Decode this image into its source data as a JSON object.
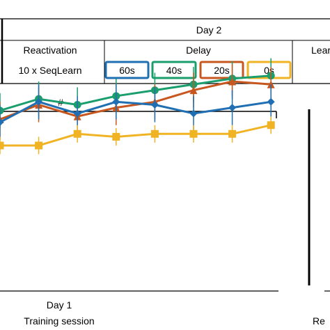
{
  "table": {
    "day_label": "Day 2",
    "col1_header": "Reactivation",
    "col1_value": "10 x SeqLearn",
    "col2_header": "Delay",
    "col3_header_partial": "Lear",
    "delays": [
      {
        "label": "60s",
        "color": "#1f6fb2"
      },
      {
        "label": "40s",
        "color": "#1a9e6e"
      },
      {
        "label": "20s",
        "color": "#c7571f"
      },
      {
        "label": "0s",
        "color": "#f0b323"
      }
    ]
  },
  "chart_data": {
    "type": "line",
    "title": "",
    "significance_marker": "#",
    "x": [
      1,
      2,
      3,
      4,
      5,
      6,
      7,
      8
    ],
    "ylim": [
      0,
      1
    ],
    "grid": false,
    "legend": "none",
    "series": [
      {
        "color": "#1a9e6e",
        "marker": "circle",
        "values": [
          0.62,
          0.66,
          0.64,
          0.67,
          0.69,
          0.71,
          0.73,
          0.74
        ],
        "err": 0.06
      },
      {
        "color": "#c7571f",
        "marker": "triangle",
        "values": [
          0.59,
          0.64,
          0.6,
          0.63,
          0.65,
          0.69,
          0.72,
          0.71
        ],
        "err": 0.06
      },
      {
        "color": "#1f6fb2",
        "marker": "diamond",
        "values": [
          0.58,
          0.65,
          0.61,
          0.65,
          0.64,
          0.61,
          0.63,
          0.65
        ],
        "err": 0.06
      },
      {
        "color": "#f0b323",
        "marker": "square",
        "values": [
          0.5,
          0.5,
          0.54,
          0.53,
          0.54,
          0.54,
          0.54,
          0.57
        ],
        "err": 0.03
      }
    ],
    "xlabel_day": "Day 1",
    "xlabel_session": "Training session",
    "right_label_partial": "Re"
  }
}
